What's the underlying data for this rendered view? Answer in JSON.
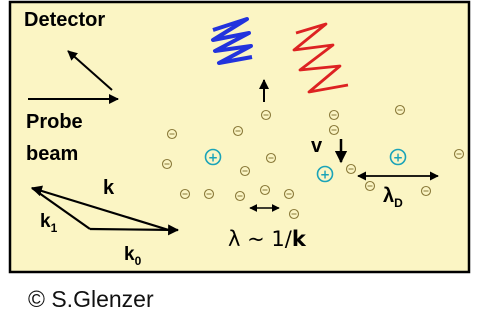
{
  "labels": {
    "detector": "Detector",
    "probe_line1": "Probe",
    "probe_line2": "beam",
    "k": "k",
    "k1_base": "k",
    "k1_sub": "1",
    "k0_base": "k",
    "k0_sub": "0",
    "v": "v",
    "lambda_wave": "λ ~ 1/",
    "lambda_wave_k": "k",
    "lambda_d_base": "λ",
    "lambda_d_sub": "D"
  },
  "symbols": {
    "electron": "⊖",
    "ion": "+"
  },
  "credit": "© S.Glenzer",
  "colors": {
    "background": "#fbf5c4",
    "border": "#000000",
    "ion": "#1aa3b8",
    "electron": "#8a7a3a",
    "blue_wave": "#2233dd",
    "red_wave": "#dd2222"
  },
  "icons": [
    "electron-icon",
    "ion-icon",
    "arrow-icon",
    "wave-icon"
  ]
}
